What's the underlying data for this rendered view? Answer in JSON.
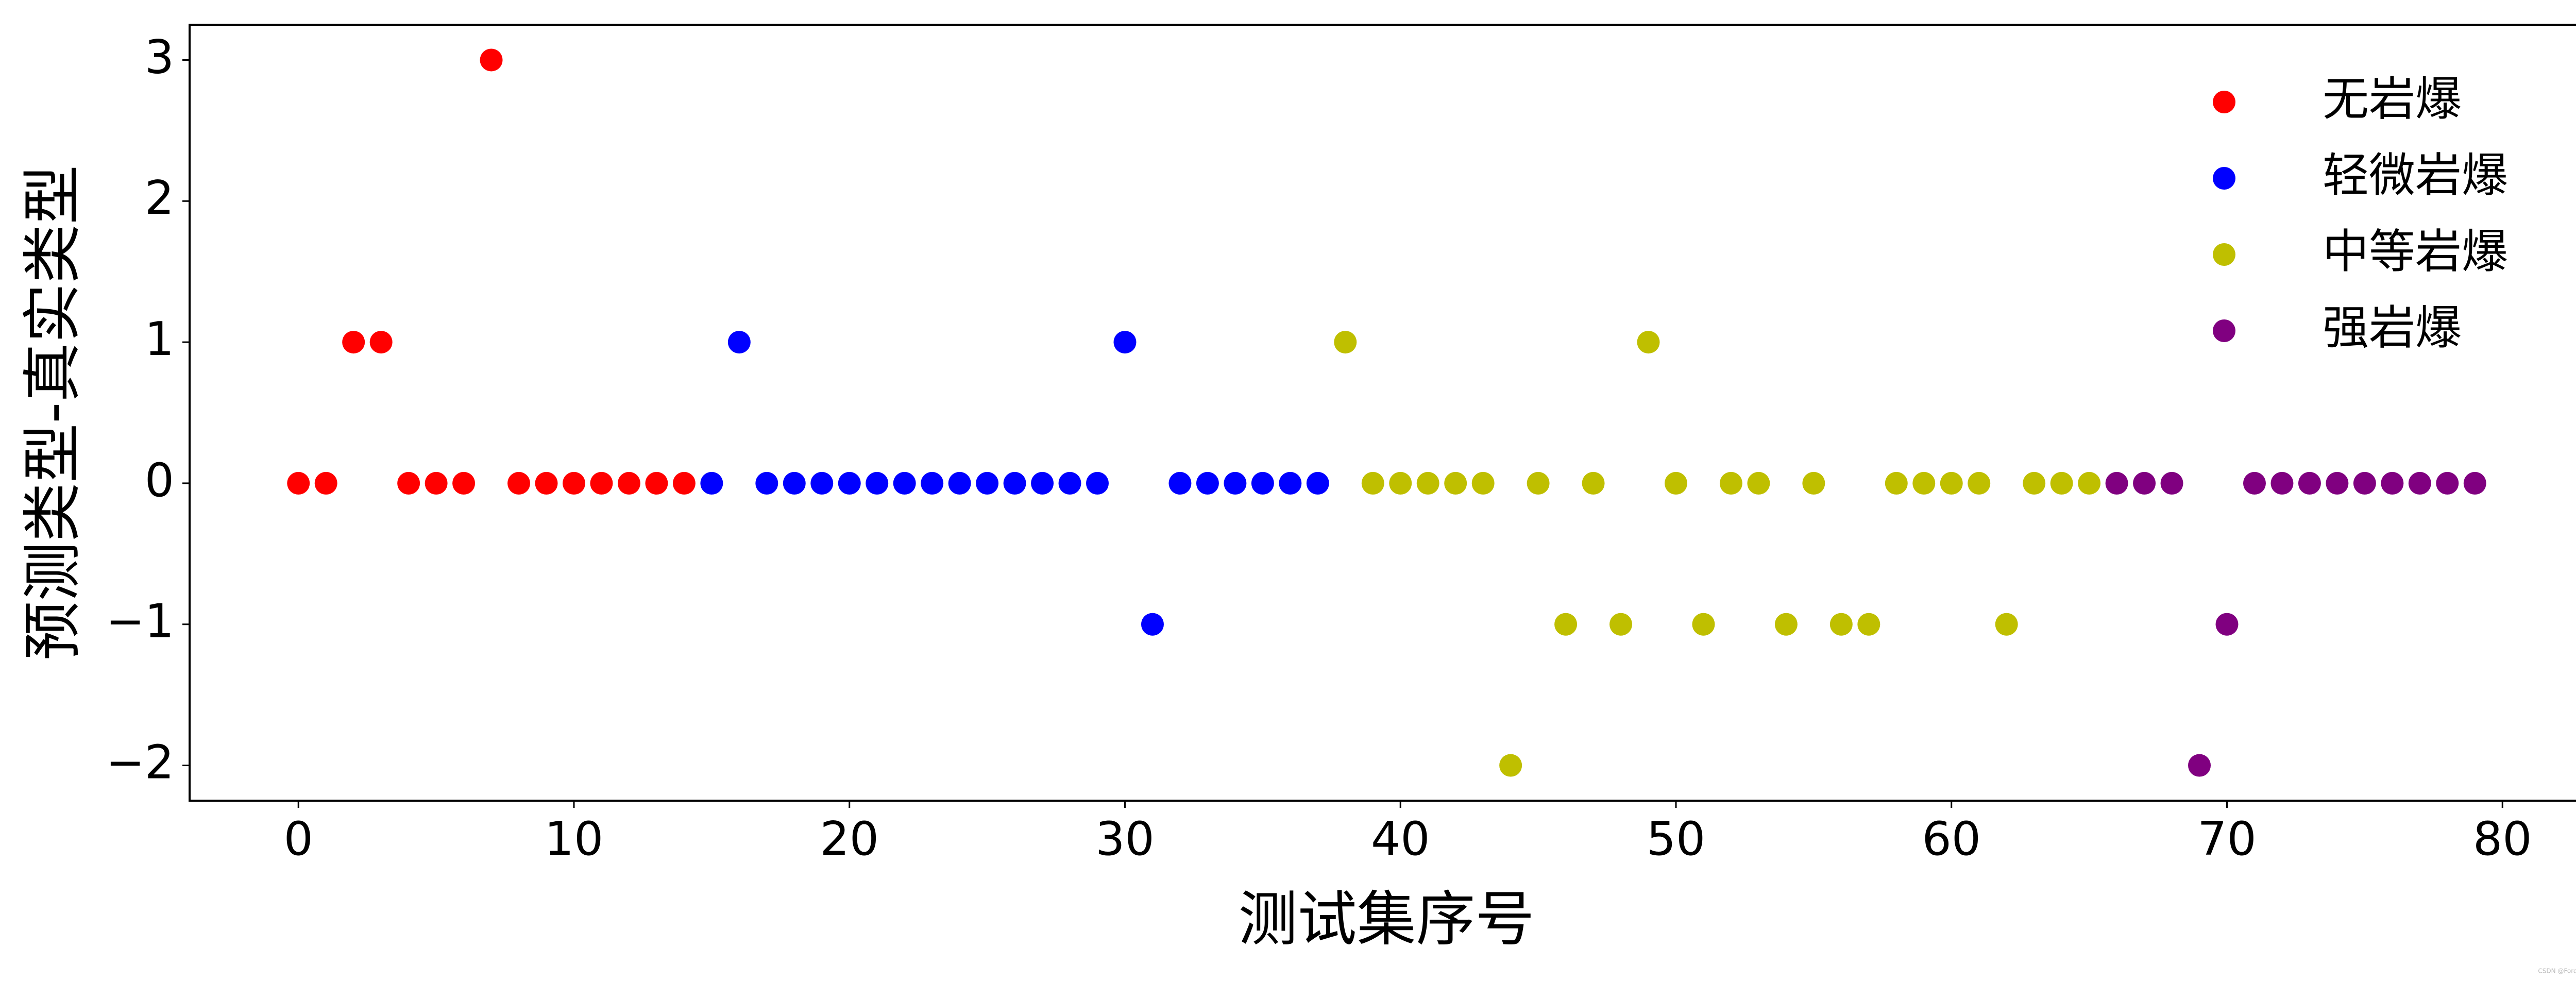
{
  "chart_data": {
    "type": "scatter",
    "xlabel": "测试集序号",
    "ylabel": "预测类型-真实类型",
    "xlim": [
      -3.95,
      82.95
    ],
    "ylim": [
      -2.25,
      3.25
    ],
    "xticks": [
      0,
      10,
      20,
      30,
      40,
      50,
      60,
      70,
      80
    ],
    "yticks": [
      {
        "value": -2,
        "label": "−2"
      },
      {
        "value": -1,
        "label": "−1"
      },
      0,
      1,
      2,
      3
    ],
    "legend": "upper right",
    "series": [
      {
        "name": "无岩爆",
        "color": "#ff0000",
        "x": [
          0,
          1,
          2,
          3,
          4,
          5,
          6,
          7,
          8,
          9,
          10,
          11,
          12,
          13,
          14
        ],
        "values": [
          0,
          0,
          1,
          1,
          0,
          0,
          0,
          3,
          0,
          0,
          0,
          0,
          0,
          0,
          0
        ]
      },
      {
        "name": "轻微岩爆",
        "color": "#0000ff",
        "x": [
          15,
          16,
          17,
          18,
          19,
          20,
          21,
          22,
          23,
          24,
          25,
          26,
          27,
          28,
          29,
          30,
          31,
          32,
          33,
          34,
          35,
          36,
          37
        ],
        "values": [
          0,
          1,
          0,
          0,
          0,
          0,
          0,
          0,
          0,
          0,
          0,
          0,
          0,
          0,
          0,
          1,
          -1,
          0,
          0,
          0,
          0,
          0,
          0
        ]
      },
      {
        "name": "中等岩爆",
        "color": "#bfbf00",
        "x": [
          38,
          39,
          40,
          41,
          42,
          43,
          44,
          45,
          46,
          47,
          48,
          49,
          50,
          51,
          52,
          53,
          54,
          55,
          56,
          57,
          58,
          59,
          60,
          61,
          62,
          63,
          64,
          65
        ],
        "values": [
          1,
          0,
          0,
          0,
          0,
          0,
          -2,
          0,
          -1,
          0,
          -1,
          1,
          0,
          -1,
          0,
          0,
          -1,
          0,
          -1,
          -1,
          0,
          0,
          0,
          0,
          -1,
          0,
          0,
          0
        ]
      },
      {
        "name": "强岩爆",
        "color": "#800080",
        "x": [
          66,
          67,
          68,
          69,
          70,
          71,
          72,
          73,
          74,
          75,
          76,
          77,
          78,
          79
        ],
        "values": [
          0,
          0,
          0,
          -2,
          -1,
          0,
          0,
          0,
          0,
          0,
          0,
          0,
          0,
          0
        ]
      }
    ],
    "watermark": "CSDN @Forest_Zhan"
  }
}
